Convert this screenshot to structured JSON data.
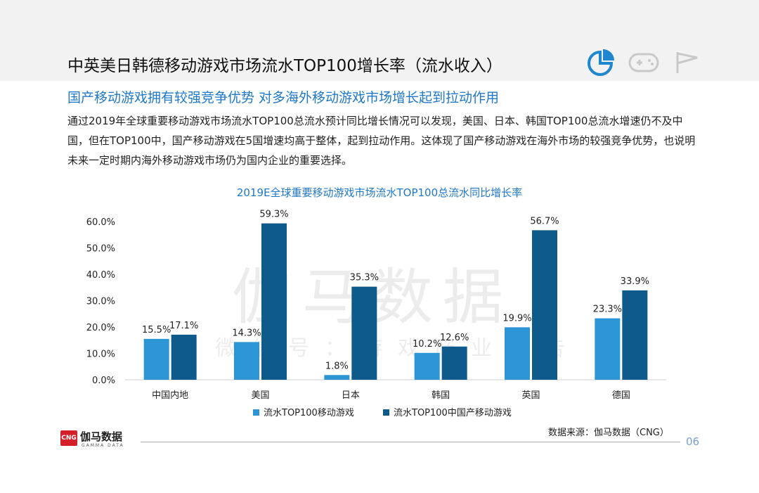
{
  "header": {
    "title": "中英美日韩德移动游戏市场流水TOP100增长率（流水收入）",
    "icons": [
      "pie-chart-icon",
      "gamepad-icon",
      "flag-icon"
    ]
  },
  "subtitle": "国产移动游戏拥有较强竞争优势  对多海外移动游戏市场增长起到拉动作用",
  "body_text": "通过2019年全球重要移动游戏市场流水TOP100总流水预计同比增长情况可以发现，美国、日本、韩国TOP100总流水增速仍不及中国，但在TOP100中，国产移动游戏在5国增速均高于整体，起到拉动作用。这体现了国产移动游戏在海外市场的较强竞争优势，也说明未来一定时期内海外移动游戏市场仍为国内企业的重要选择。",
  "watermark": {
    "main": "伽马数据",
    "sub": "微信号：游戏产业报告"
  },
  "chart_data": {
    "type": "bar",
    "title": "2019E全球重要移动游戏市场流水TOP100总流水同比增长率",
    "categories": [
      "中国内地",
      "美国",
      "日本",
      "韩国",
      "英国",
      "德国"
    ],
    "series": [
      {
        "name": "流水TOP100移动游戏",
        "values": [
          15.5,
          14.3,
          1.8,
          10.2,
          19.9,
          23.3
        ],
        "color": "#2b95d6"
      },
      {
        "name": "流水TOP100中国产移动游戏",
        "values": [
          17.1,
          59.3,
          35.3,
          12.6,
          56.7,
          33.9
        ],
        "color": "#0e5a8a"
      }
    ],
    "y_ticks": [
      "0.0%",
      "10.0%",
      "20.0%",
      "30.0%",
      "40.0%",
      "50.0%",
      "60.0%"
    ],
    "ylim": [
      0,
      60
    ],
    "value_suffix": "%",
    "legend_position": "bottom",
    "grid": false
  },
  "footer": {
    "source": "数据来源：伽马数据（CNG）",
    "page_number": "06",
    "logo_badge": "CNG",
    "logo_name": "伽马数据",
    "logo_sub": "GAMMA DATA"
  }
}
